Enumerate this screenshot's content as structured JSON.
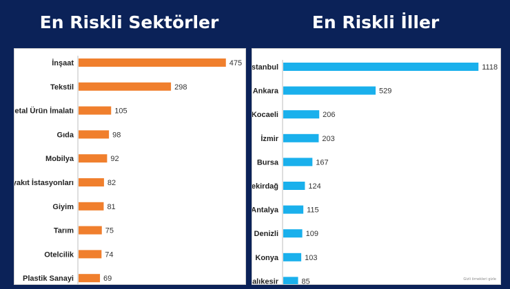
{
  "chart_data": [
    {
      "type": "bar",
      "orientation": "horizontal",
      "title": "En Riskli Sektörler",
      "categories": [
        "İnşaat",
        "Tekstil",
        "Metal Ürün İmalatı",
        "Gıda",
        "Mobilya",
        "Akaryakıt İstasyonları",
        "Giyim",
        "Tarım",
        "Otelcilik",
        "Plastik Sanayi"
      ],
      "values": [
        475,
        298,
        105,
        98,
        92,
        82,
        81,
        75,
        74,
        69
      ],
      "xlim": [
        0,
        480
      ],
      "color": "#f07f2d",
      "grid": false,
      "xlabel": "",
      "ylabel": ""
    },
    {
      "type": "bar",
      "orientation": "horizontal",
      "title": "En Riskli İller",
      "categories": [
        "İstanbul",
        "Ankara",
        "Kocaeli",
        "İzmir",
        "Bursa",
        "Tekirdağ",
        "Antalya",
        "Denizli",
        "Konya",
        "Balıkesir"
      ],
      "values": [
        1118,
        529,
        206,
        203,
        167,
        124,
        115,
        109,
        103,
        85
      ],
      "xlim": [
        0,
        1125
      ],
      "color": "#1ab0ec",
      "grid": false,
      "xlabel": "",
      "ylabel": ""
    }
  ],
  "watermark": "Gizli örnekleri gizle"
}
